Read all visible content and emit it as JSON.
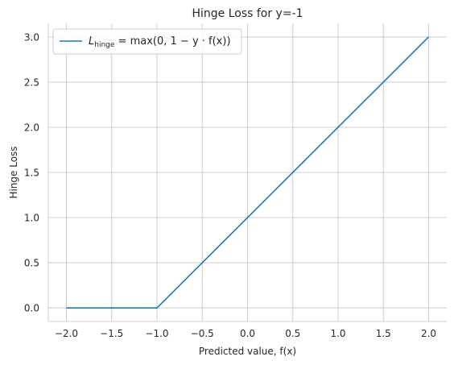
{
  "chart_data": {
    "type": "line",
    "title": "Hinge Loss for y=-1",
    "xlabel": "Predicted value, f(x)",
    "ylabel": "Hinge Loss",
    "xlim": [
      -2.2,
      2.2
    ],
    "ylim": [
      -0.15,
      3.15
    ],
    "xticks": [
      "−2.0",
      "−1.5",
      "−1.0",
      "−0.5",
      "0.0",
      "0.5",
      "1.0",
      "1.5",
      "2.0"
    ],
    "xtick_values": [
      -2.0,
      -1.5,
      -1.0,
      -0.5,
      0.0,
      0.5,
      1.0,
      1.5,
      2.0
    ],
    "yticks": [
      "0.0",
      "0.5",
      "1.0",
      "1.5",
      "2.0",
      "2.5",
      "3.0"
    ],
    "ytick_values": [
      0.0,
      0.5,
      1.0,
      1.5,
      2.0,
      2.5,
      3.0
    ],
    "grid": true,
    "legend_placement": "top-left",
    "series": [
      {
        "name": "L_hinge = max(0, 1 − y · f(x))",
        "color": "#1f77b4",
        "x": [
          -2.0,
          -1.0,
          2.0
        ],
        "y": [
          0.0,
          0.0,
          3.0
        ]
      }
    ]
  },
  "legend": {
    "prefix": "L",
    "subscript": "hinge",
    "formula": " = max(0,  1 − y · f(x))"
  }
}
